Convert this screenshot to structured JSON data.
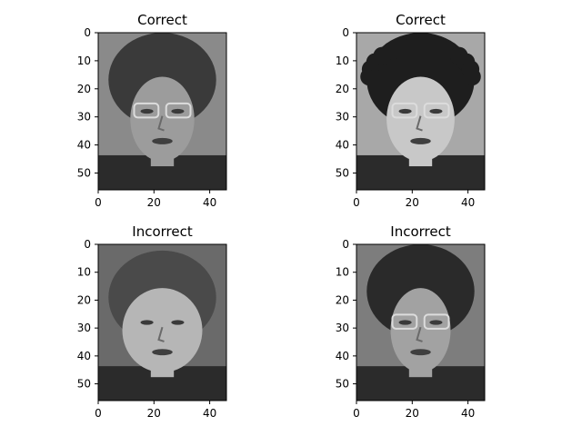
{
  "figure": {
    "background": "#ffffff",
    "axis_color": "#000000"
  },
  "chart_data": [
    {
      "type": "image",
      "title": "Correct",
      "xlabel": "",
      "ylabel": "",
      "image_size": [
        46,
        56
      ],
      "xlim": [
        0,
        46
      ],
      "ylim": [
        56,
        0
      ],
      "xticks": [
        0,
        20,
        40
      ],
      "yticks": [
        0,
        10,
        20,
        30,
        40,
        50
      ],
      "colormap": "gray",
      "subject": "woman with short dark hair and glasses",
      "grid": false,
      "legend": "none"
    },
    {
      "type": "image",
      "title": "Correct",
      "xlabel": "",
      "ylabel": "",
      "image_size": [
        46,
        56
      ],
      "xlim": [
        0,
        46
      ],
      "ylim": [
        56,
        0
      ],
      "xticks": [
        0,
        20,
        40
      ],
      "yticks": [
        0,
        10,
        20,
        30,
        40,
        50
      ],
      "colormap": "gray",
      "subject": "woman with curly dark hair and glasses",
      "grid": false,
      "legend": "none"
    },
    {
      "type": "image",
      "title": "Incorrect",
      "xlabel": "",
      "ylabel": "",
      "image_size": [
        46,
        56
      ],
      "xlim": [
        0,
        46
      ],
      "ylim": [
        56,
        0
      ],
      "xticks": [
        0,
        20,
        40
      ],
      "yticks": [
        0,
        10,
        20,
        30,
        40,
        50
      ],
      "colormap": "gray",
      "subject": "young woman with hair pulled back",
      "grid": false,
      "legend": "none"
    },
    {
      "type": "image",
      "title": "Incorrect",
      "xlabel": "",
      "ylabel": "",
      "image_size": [
        46,
        56
      ],
      "xlim": [
        0,
        46
      ],
      "ylim": [
        56,
        0
      ],
      "xticks": [
        0,
        20,
        40
      ],
      "yticks": [
        0,
        10,
        20,
        30,
        40,
        50
      ],
      "colormap": "gray",
      "subject": "woman with dark bob haircut and glasses",
      "grid": false,
      "legend": "none"
    }
  ]
}
